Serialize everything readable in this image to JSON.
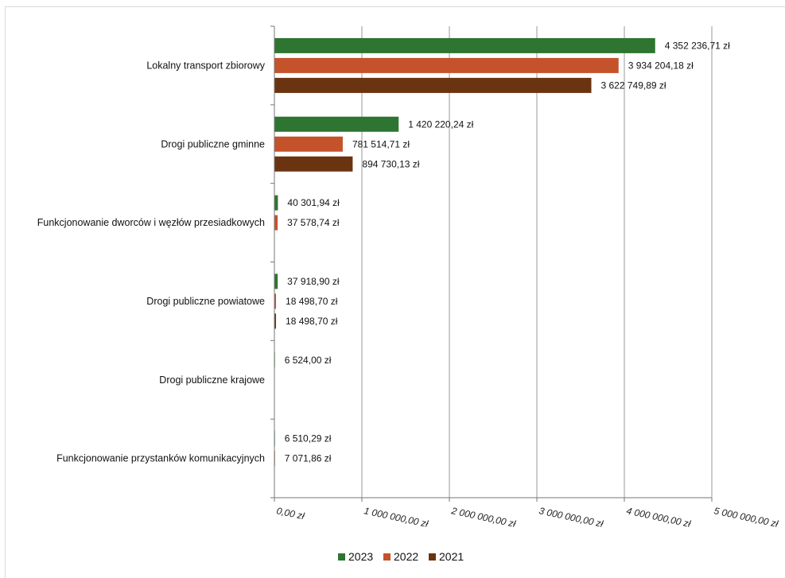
{
  "chart_data": {
    "type": "bar",
    "orientation": "horizontal",
    "categories": [
      "Lokalny transport zbiorowy",
      "Drogi publiczne gminne",
      "Funkcjonowanie dworców i węzłów przesiadkowych",
      "Drogi publiczne powiatowe",
      "Drogi publiczne krajowe",
      "Funkcjonowanie przystanków komunikacyjnych"
    ],
    "series": [
      {
        "name": "2023",
        "color": "#2e7532",
        "values": [
          4352236.71,
          1420220.24,
          40301.94,
          37918.9,
          6524.0,
          6510.29
        ],
        "labels": [
          "4 352 236,71 zł",
          "1 420 220,24 zł",
          "40 301,94 zł",
          "37 918,90 zł",
          "6 524,00 zł",
          "6 510,29 zł"
        ]
      },
      {
        "name": "2022",
        "color": "#c4532b",
        "values": [
          3934204.18,
          781514.71,
          37578.74,
          18498.7,
          null,
          7071.86
        ],
        "labels": [
          "3 934 204,18 zł",
          "781 514,71 zł",
          "37 578,74 zł",
          "18 498,70 zł",
          null,
          "7 071,86 zł"
        ]
      },
      {
        "name": "2021",
        "color": "#6b3410",
        "values": [
          3622749.89,
          894730.13,
          null,
          18498.7,
          null,
          null
        ],
        "labels": [
          "3 622 749,89 zł",
          "894 730,13 zł",
          null,
          "18 498,70 zł",
          null,
          null
        ]
      }
    ],
    "xlim": [
      0,
      5000000
    ],
    "xticks": [
      0,
      1000000,
      2000000,
      3000000,
      4000000,
      5000000
    ],
    "xtick_labels": [
      "0,00 zł",
      "1 000 000,00 zł",
      "2 000 000,00 zł",
      "3 000 000,00 zł",
      "4 000 000,00 zł",
      "5 000 000,00 zł"
    ],
    "grid": "vertical",
    "legend_position": "bottom"
  }
}
